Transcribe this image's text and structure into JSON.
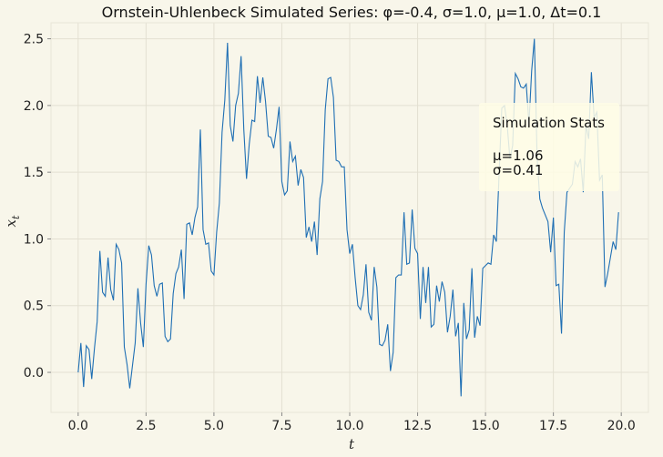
{
  "chart_data": {
    "type": "line",
    "title": "Ornstein-Uhlenbeck Simulated Series: φ=-0.4, σ=1.0, μ=1.0, Δt=0.1",
    "xlabel": "t",
    "ylabel": "x_t",
    "xlim": [
      -1.0,
      21.0
    ],
    "ylim": [
      -0.3,
      2.62
    ],
    "x_ticks": [
      0.0,
      2.5,
      5.0,
      7.5,
      10.0,
      12.5,
      15.0,
      17.5,
      20.0
    ],
    "x_tick_labels": [
      "0.0",
      "2.5",
      "5.0",
      "7.5",
      "10.0",
      "12.5",
      "15.0",
      "17.5",
      "20.0"
    ],
    "y_ticks": [
      0.0,
      0.5,
      1.0,
      1.5,
      2.0,
      2.5
    ],
    "y_tick_labels": [
      "0.0",
      "0.5",
      "1.0",
      "1.5",
      "2.0",
      "2.5"
    ],
    "grid": true,
    "line_color": "#1f6fb4",
    "series": [
      {
        "x_start": 0.0,
        "dt": 0.1,
        "values": [
          0.0,
          0.22,
          -0.11,
          0.2,
          0.17,
          -0.05,
          0.18,
          0.38,
          0.91,
          0.6,
          0.57,
          0.86,
          0.62,
          0.54,
          0.96,
          0.92,
          0.82,
          0.19,
          0.06,
          -0.12,
          0.05,
          0.22,
          0.63,
          0.37,
          0.19,
          0.66,
          0.95,
          0.88,
          0.65,
          0.57,
          0.66,
          0.67,
          0.27,
          0.23,
          0.25,
          0.59,
          0.74,
          0.79,
          0.92,
          0.55,
          1.11,
          1.12,
          1.03,
          1.16,
          1.24,
          1.82,
          1.07,
          0.96,
          0.97,
          0.76,
          0.73,
          1.05,
          1.27,
          1.8,
          2.04,
          2.47,
          1.85,
          1.73,
          2.0,
          2.09,
          2.37,
          1.82,
          1.45,
          1.71,
          1.89,
          1.88,
          2.22,
          2.02,
          2.21,
          2.03,
          1.77,
          1.76,
          1.68,
          1.82,
          1.99,
          1.43,
          1.33,
          1.36,
          1.73,
          1.58,
          1.62,
          1.4,
          1.52,
          1.46,
          1.01,
          1.09,
          0.98,
          1.13,
          0.88,
          1.3,
          1.43,
          1.97,
          2.2,
          2.21,
          2.06,
          1.59,
          1.58,
          1.54,
          1.54,
          1.07,
          0.89,
          0.96,
          0.71,
          0.5,
          0.47,
          0.58,
          0.81,
          0.45,
          0.39,
          0.79,
          0.64,
          0.21,
          0.2,
          0.24,
          0.36,
          0.01,
          0.15,
          0.71,
          0.73,
          0.73,
          1.2,
          0.81,
          0.82,
          1.22,
          0.93,
          0.89,
          0.4,
          0.79,
          0.52,
          0.79,
          0.34,
          0.36,
          0.65,
          0.53,
          0.68,
          0.6,
          0.3,
          0.42,
          0.62,
          0.27,
          0.37,
          -0.18,
          0.52,
          0.25,
          0.32,
          0.78,
          0.26,
          0.42,
          0.35,
          0.78,
          0.8,
          0.82,
          0.81,
          1.03,
          0.98,
          1.48,
          1.98,
          2.0,
          1.85,
          1.6,
          1.7,
          2.24,
          2.2,
          2.14,
          2.13,
          2.16,
          1.86,
          2.26,
          2.5,
          1.61,
          1.3,
          1.23,
          1.18,
          1.13,
          0.9,
          1.16,
          0.65,
          0.66,
          0.29,
          1.05,
          1.35,
          1.38,
          1.41,
          1.58,
          1.54,
          1.6,
          1.35,
          1.85,
          1.75,
          2.25,
          1.91,
          1.95,
          1.44,
          1.48,
          0.64,
          0.74,
          0.86,
          0.98,
          0.92,
          1.2
        ]
      }
    ],
    "annotation": {
      "title": "Simulation Stats",
      "lines": [
        "μ=1.06",
        "σ=0.41"
      ]
    }
  }
}
